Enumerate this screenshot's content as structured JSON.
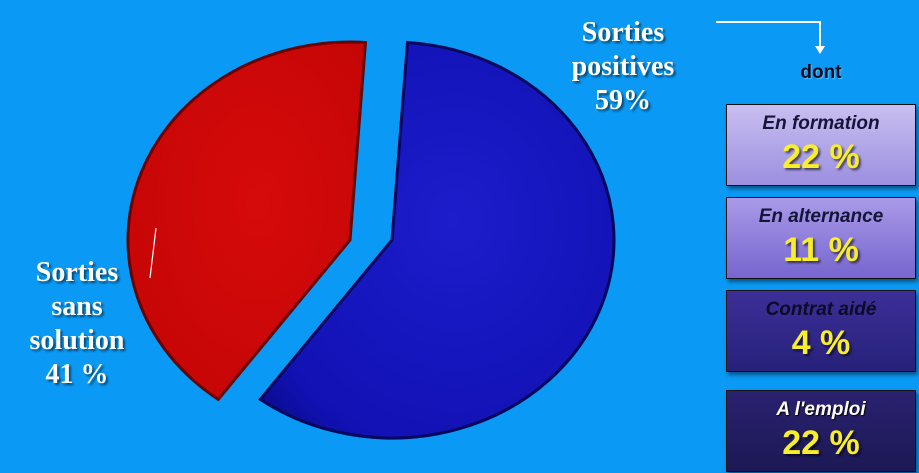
{
  "chart_data": {
    "type": "pie",
    "slices": [
      {
        "label": "Sorties positives",
        "display": "59%",
        "value": 59,
        "color": "#1515c4"
      },
      {
        "label": "Sorties sans solution",
        "display": "41 %",
        "value": 41,
        "color": "#cc0808"
      }
    ],
    "labels": {
      "positive": {
        "line1": "Sorties",
        "line2": "positives",
        "line3": "59%"
      },
      "negative": {
        "line1": "Sorties",
        "line2": "sans",
        "line3": "solution",
        "line4": "41 %"
      }
    },
    "breakdown_title": "dont",
    "breakdown": [
      {
        "label": "En formation",
        "value": "22 %"
      },
      {
        "label": "En alternance",
        "value": "11 %"
      },
      {
        "label": "Contrat aidé",
        "value": "4 %"
      },
      {
        "label": "A l'emploi",
        "value": "22 %"
      }
    ]
  },
  "colors": {
    "background": "#0a9af5",
    "accent_value": "#f8ee2a"
  }
}
